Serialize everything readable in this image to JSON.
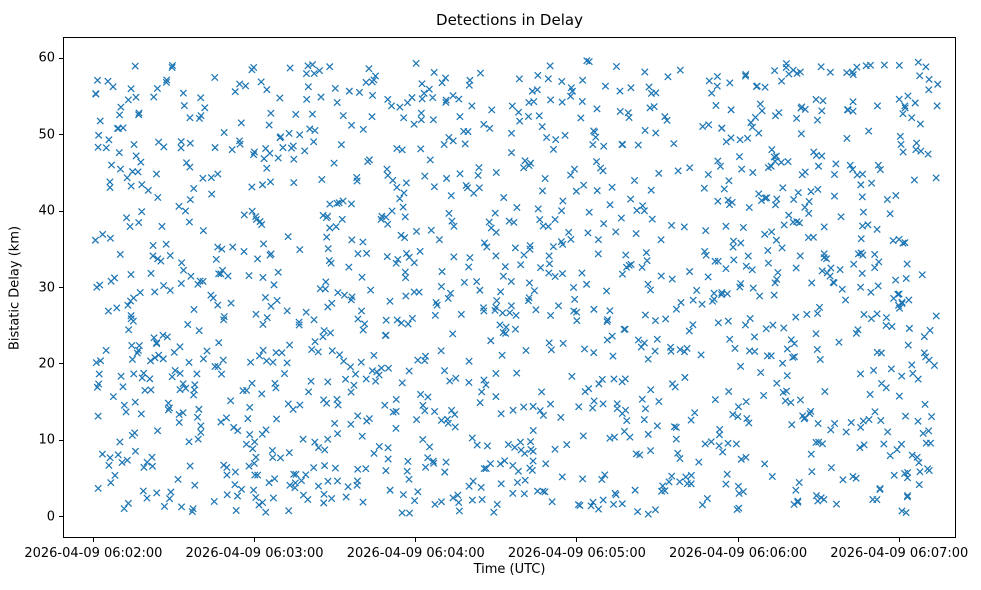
{
  "chart_data": {
    "type": "scatter",
    "title": "Detections in Delay",
    "xlabel": "Time (UTC)",
    "ylabel": "Bistatic Delay (km)",
    "x_tick_labels": [
      "2026-04-09 06:02:00",
      "2026-04-09 06:03:00",
      "2026-04-09 06:04:00",
      "2026-04-09 06:05:00",
      "2026-04-09 06:06:00",
      "2026-04-09 06:07:00"
    ],
    "y_ticks": [
      0,
      10,
      20,
      30,
      40,
      50,
      60
    ],
    "y_tick_labels": [
      "0",
      "10",
      "20",
      "30",
      "40",
      "50",
      "60"
    ],
    "ylim": [
      -2.8,
      62.8
    ],
    "x_range": [
      "2026-04-09 06:02:00",
      "2026-04-09 06:07:15"
    ],
    "y_range": [
      0.2,
      59.9
    ],
    "marker": "x",
    "marker_color": "#1f77b4",
    "n_points_estimate": 1400,
    "distribution": "uniform-random",
    "legend": "none",
    "grid": false
  }
}
